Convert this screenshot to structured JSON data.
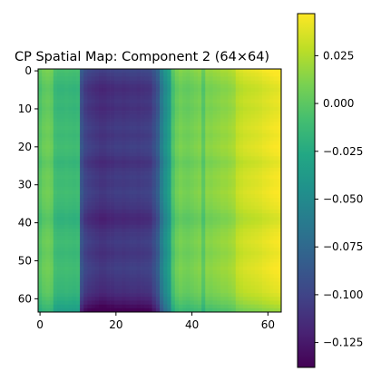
{
  "chart_data": {
    "type": "heatmap",
    "title": "CP Spatial Map: Component 2 (64×64)",
    "xlabel": "",
    "ylabel": "",
    "colormap": "viridis",
    "xlim": [
      0,
      63
    ],
    "ylim": [
      0,
      63
    ],
    "xticks": [
      0,
      20,
      40,
      60
    ],
    "yticks": [
      0,
      10,
      20,
      30,
      40,
      50,
      60
    ],
    "colorbar": {
      "vmin": -0.138,
      "vmax": 0.047,
      "ticks": [
        0.025,
        0.0,
        -0.025,
        -0.05,
        -0.075,
        -0.1,
        -0.125
      ],
      "tick_labels": [
        "0.025",
        "0.000",
        "−0.025",
        "−0.050",
        "−0.075",
        "−0.100",
        "−0.125"
      ]
    },
    "grid_size": [
      64,
      64
    ],
    "column_profile": [
      -0.002,
      0.004,
      0.006,
      0.004,
      -0.01,
      -0.012,
      -0.012,
      -0.011,
      -0.012,
      -0.013,
      -0.012,
      -0.09,
      -0.1,
      -0.104,
      -0.106,
      -0.108,
      -0.11,
      -0.11,
      -0.108,
      -0.108,
      -0.106,
      -0.106,
      -0.107,
      -0.106,
      -0.105,
      -0.105,
      -0.106,
      -0.105,
      -0.104,
      -0.103,
      -0.094,
      -0.084,
      -0.06,
      -0.045,
      -0.035,
      -0.005,
      0.005,
      0.009,
      0.007,
      0.006,
      0.008,
      0.01,
      0.012,
      0.0,
      0.014,
      0.013,
      0.015,
      0.016,
      0.018,
      0.018,
      0.02,
      0.022,
      0.03,
      0.032,
      0.034,
      0.035,
      0.036,
      0.037,
      0.038,
      0.04,
      0.041,
      0.043,
      0.044,
      0.045
    ],
    "row_profile": [
      0.004,
      0.002,
      0.0,
      -0.002,
      -0.004,
      -0.005,
      -0.004,
      -0.003,
      -0.002,
      -0.003,
      -0.004,
      -0.003,
      -0.002,
      -0.001,
      0.0,
      0.001,
      0.0,
      -0.001,
      0.0,
      0.001,
      0.002,
      0.001,
      0.0,
      -0.002,
      -0.004,
      -0.003,
      -0.001,
      0.0,
      0.001,
      0.0,
      0.0,
      0.001,
      0.002,
      0.001,
      0.0,
      -0.001,
      -0.002,
      -0.004,
      -0.006,
      -0.007,
      -0.006,
      -0.004,
      -0.002,
      -0.001,
      0.0,
      0.001,
      0.0,
      -0.001,
      -0.002,
      -0.001,
      0.0,
      0.001,
      0.002,
      0.001,
      0.0,
      -0.001,
      -0.002,
      -0.003,
      -0.004,
      -0.006,
      -0.009,
      -0.012,
      -0.016,
      -0.02
    ],
    "row_gradient_strength": 0.3
  }
}
